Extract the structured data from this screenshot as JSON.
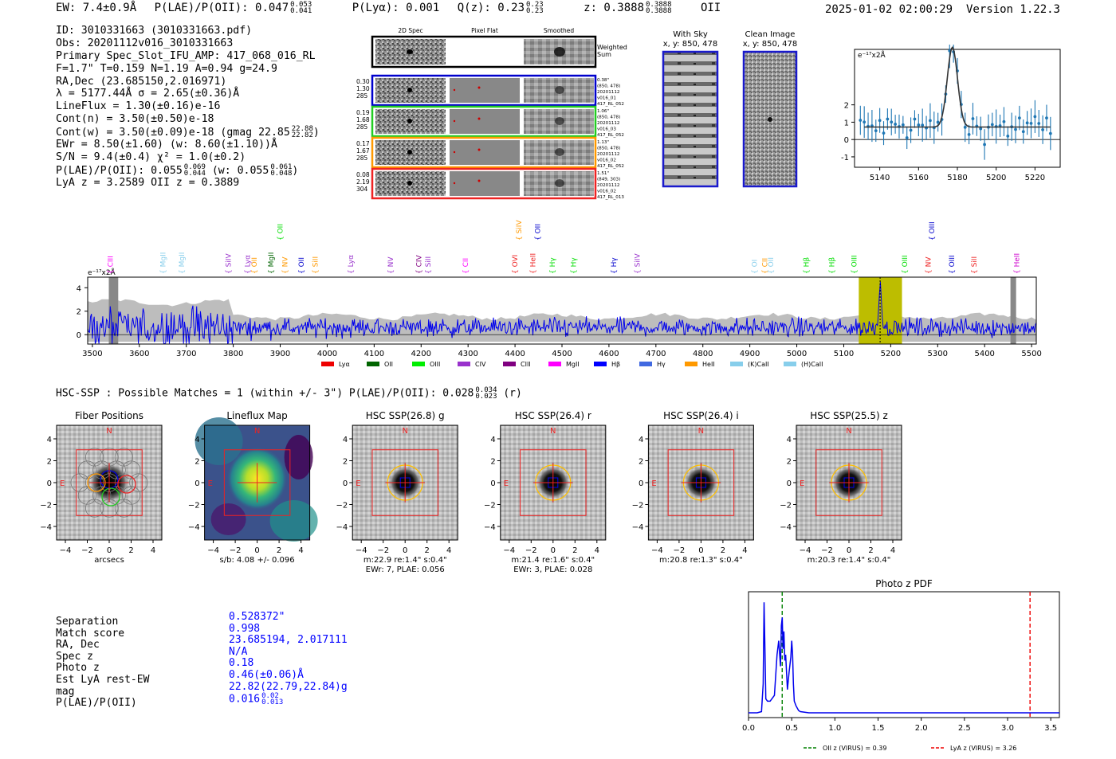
{
  "header": {
    "ew": "EW: 7.4±0.9Å",
    "plae_label": "P(LAE)/P(OII): 0.047",
    "plae_hi": "0.053",
    "plae_lo": "0.041",
    "plya": "P(Lyα): 0.001",
    "qz_label": "Q(z): 0.23",
    "qz_hi": "0.23",
    "qz_lo": "0.23",
    "z_label": "z: 0.3888",
    "z_hi": "0.3888",
    "z_lo": "0.3888",
    "z_line": "OII",
    "timestamp": "2025-01-02 02:00:29",
    "version": "Version 1.22.3"
  },
  "info": {
    "id": "ID: 3010331663 (3010331663.pdf)",
    "obs": "Obs: 20201112v016_3010331663",
    "primary": "Primary Spec_Slot_IFU_AMP: 417_068_016_RL",
    "fparams": "F=1.7\"  T=0.159  N=1.19  A=0.94  g=24.9",
    "radec": "RA,Dec (23.685150,2.016971)",
    "lambda": "λ = 5177.44Å  σ = 2.65(±0.36)Å",
    "lineflux": "LineFlux = 1.30(±0.16)e-16",
    "contn": "Cont(n) = 3.50(±0.50)e-18",
    "contw": "Cont(w) = 3.50(±0.09)e-18 (gmag 22.85",
    "contw_hi": "22.88",
    "contw_lo": "22.82",
    "ewr": "EWr = 8.50(±1.60) (w: 8.60(±1.10))Å",
    "sn": "S/N = 9.4(±0.4)  χ² = 1.0(±0.2)",
    "plae": "P(LAE)/P(OII): 0.055",
    "plae_hi": "0.069",
    "plae_lo": "0.044",
    "plae_w": "(w: 0.055",
    "plae_w_hi": "0.061",
    "plae_w_lo": "0.048",
    "lyaz": "LyA z = 3.2589  OII z = 0.3889"
  },
  "cutouts": {
    "col_2d": "2D Spec",
    "col_flat": "Pixel Flat",
    "col_smooth": "Smoothed",
    "weighted": [
      "Weighted",
      "Sum"
    ],
    "rows": [
      {
        "left": [
          "0.30",
          "1.30",
          "285"
        ],
        "right": [
          "0.38\"",
          "(850, 478)",
          "20201112",
          "v016_01",
          "417_RL_052"
        ],
        "color": "#0000cc"
      },
      {
        "left": [
          "0.19",
          "1.68",
          "285"
        ],
        "right": [
          "1.06\"",
          "(850, 478)",
          "20201112",
          "v016_03",
          "417_RL_052"
        ],
        "color": "#22cc22"
      },
      {
        "left": [
          "0.17",
          "1.67",
          "285"
        ],
        "right": [
          "1.13\"",
          "(850, 478)",
          "20201112",
          "v016_02",
          "417_RL_052"
        ],
        "color": "#ff9900"
      },
      {
        "left": [
          "0.08",
          "2.19",
          "304"
        ],
        "right": [
          "1.51\"",
          "(849, 303)",
          "20201112",
          "v016_02",
          "417_RL_013"
        ],
        "color": "#ee2222"
      }
    ],
    "with_sky": [
      "With Sky",
      "x, y: 850, 478"
    ],
    "clean": [
      "Clean Image",
      "x, y: 850, 478"
    ]
  },
  "zoom_chart": {
    "type": "scatter",
    "ylabel": "e⁻¹⁷x2Å",
    "xticks": [
      "5140",
      "5160",
      "5180",
      "5200",
      "5220"
    ],
    "yticks": [
      "2",
      "1",
      "0",
      "-1"
    ],
    "xlim": [
      5127,
      5233
    ],
    "ylim": [
      -1.6,
      5.2
    ],
    "gauss": {
      "center": 5177.44,
      "sigma": 2.65,
      "amp": 4.6,
      "base": 0.72
    }
  },
  "spectrum": {
    "ylabel": "e⁻¹⁷x2Å",
    "xticks": [
      "3500",
      "3600",
      "3700",
      "3800",
      "3900",
      "4000",
      "4100",
      "4200",
      "4300",
      "4400",
      "4500",
      "4600",
      "4700",
      "4800",
      "4900",
      "5000",
      "5100",
      "5200",
      "5300",
      "5400",
      "5500"
    ],
    "yticks": [
      "4",
      "2",
      "0"
    ],
    "xlim": [
      3490,
      5510
    ],
    "ylim": [
      -0.8,
      4.9
    ],
    "line_labels": [
      {
        "name": "CIII",
        "w": 3538,
        "color": "#ff00ff"
      },
      {
        "name": "MgII",
        "w": 3650,
        "color": "#87ceeb"
      },
      {
        "name": "MgII",
        "w": 3690,
        "color": "#87ceeb"
      },
      {
        "name": "SiIV",
        "w": 3790,
        "color": "#9932cc"
      },
      {
        "name": "Lyα",
        "w": 3830,
        "color": "#9932cc"
      },
      {
        "name": "OII",
        "w": 3845,
        "color": "#ff9900"
      },
      {
        "name": "MgII",
        "w": 3880,
        "color": "#006400"
      },
      {
        "name": "NV",
        "w": 3910,
        "color": "#ff9900"
      },
      {
        "name": "OII",
        "w": 3945,
        "color": "#0000cc"
      },
      {
        "name": "SiII",
        "w": 3975,
        "color": "#ff9900"
      },
      {
        "name": "Lyα",
        "w": 4050,
        "color": "#9932cc"
      },
      {
        "name": "NV",
        "w": 4135,
        "color": "#9932cc"
      },
      {
        "name": "CIV",
        "w": 4195,
        "color": "#800080"
      },
      {
        "name": "SiII",
        "w": 4215,
        "color": "#9932cc"
      },
      {
        "name": "CII",
        "w": 4295,
        "color": "#ff00ff"
      },
      {
        "name": "OVI",
        "w": 4400,
        "color": "#ee2222"
      },
      {
        "name": "HeII",
        "w": 4438,
        "color": "#ee2222"
      },
      {
        "name": "Hγ",
        "w": 4480,
        "color": "#00dd00"
      },
      {
        "name": "Hγ",
        "w": 4525,
        "color": "#00dd00"
      },
      {
        "name": "Hγ",
        "w": 4610,
        "color": "#0000cc"
      },
      {
        "name": "SiIV",
        "w": 4660,
        "color": "#9932cc"
      },
      {
        "name": "OI",
        "w": 4910,
        "color": "#87ceeb"
      },
      {
        "name": "CII",
        "w": 4932,
        "color": "#ff9900"
      },
      {
        "name": "OII",
        "w": 4945,
        "color": "#87ceeb"
      },
      {
        "name": "Hβ",
        "w": 5020,
        "color": "#00dd00"
      },
      {
        "name": "Hβ",
        "w": 5075,
        "color": "#00dd00"
      },
      {
        "name": "OIII",
        "w": 5122,
        "color": "#00dd00"
      },
      {
        "name": "OIII",
        "w": 5230,
        "color": "#00dd00"
      },
      {
        "name": "NV",
        "w": 5280,
        "color": "#ee2222"
      },
      {
        "name": "OIII",
        "w": 5330,
        "color": "#0000cc"
      },
      {
        "name": "SiII",
        "w": 5378,
        "color": "#ee2222"
      },
      {
        "name": "HeII",
        "w": 5468,
        "color": "#cc00cc"
      }
    ],
    "upper_labels": [
      {
        "name": "OII",
        "w": 3900,
        "color": "#00dd00"
      },
      {
        "name": "SiIV",
        "w": 4408,
        "color": "#ff9900"
      },
      {
        "name": "OII",
        "w": 4448,
        "color": "#0000cc"
      },
      {
        "name": "OIII",
        "w": 5288,
        "color": "#0000cc"
      }
    ],
    "legend": [
      {
        "label": "Lyα",
        "color": "#ee0000"
      },
      {
        "label": "OII",
        "color": "#006400"
      },
      {
        "label": "OIII",
        "color": "#00ee00"
      },
      {
        "label": "CIV",
        "color": "#9932cc"
      },
      {
        "label": "CIII",
        "color": "#800080"
      },
      {
        "label": "MgII",
        "color": "#ff00ff"
      },
      {
        "label": "Hβ",
        "color": "#0000ff"
      },
      {
        "label": "Hγ",
        "color": "#4169e1"
      },
      {
        "label": "HeII",
        "color": "#ff9900"
      },
      {
        "label": "(K)CaII",
        "color": "#87ceeb"
      },
      {
        "label": "(H)CaII",
        "color": "#87ceeb"
      }
    ],
    "highlight": [
      5132,
      5224
    ],
    "line_center": 5177.44
  },
  "hsc": {
    "line": "HSC-SSP : Possible Matches = 1 (within +/- 3\")  P(LAE)/P(OII): 0.028",
    "hi": "0.034",
    "lo": "0.023",
    "band": "(r)"
  },
  "panels": [
    {
      "title": "Fiber Positions",
      "captions": [
        "arcsecs"
      ],
      "kind": "fiber"
    },
    {
      "title": "Lineflux Map",
      "captions": [
        "s/b: 4.08 +/- 0.096"
      ],
      "kind": "lineflux"
    },
    {
      "title": "HSC SSP(26.8) g",
      "captions": [
        "m:22.9  re:1.4\"  s:0.4\"",
        "EWr: 7, PLAE: 0.056"
      ],
      "kind": "hsc"
    },
    {
      "title": "HSC SSP(26.4) r",
      "captions": [
        "m:21.4  re:1.6\"  s:0.4\"",
        "EWr: 3, PLAE: 0.028"
      ],
      "kind": "hsc"
    },
    {
      "title": "HSC SSP(26.4) i",
      "captions": [
        "m:20.8  re:1.3\"  s:0.4\""
      ],
      "kind": "hsc"
    },
    {
      "title": "HSC SSP(25.5) z",
      "captions": [
        "m:20.3  re:1.4\"  s:0.4\""
      ],
      "kind": "hsc"
    }
  ],
  "panel_ticks": {
    "x": [
      "−4",
      "−2",
      "0",
      "2",
      "4"
    ],
    "y": [
      "4",
      "2",
      "0",
      "−2",
      "−4"
    ],
    "n": "N",
    "e": "E"
  },
  "match": {
    "labels": [
      "Separation",
      "Match score",
      "RA, Dec",
      "Spec z",
      "Photo z",
      "Est LyA rest-EW",
      "mag",
      "P(LAE)/P(OII)"
    ],
    "values": [
      "0.528372\"",
      "0.998",
      "23.685194, 2.017111",
      "N/A",
      "0.18",
      "0.46(±0.06)Å",
      "22.82(22.79,22.84)g",
      "0.016"
    ],
    "plae_hi": "0.02",
    "plae_lo": "0.013"
  },
  "chart_data": [
    {
      "type": "line",
      "title": "Photo z PDF",
      "xlabel": "",
      "ylabel": "",
      "xlim": [
        0.0,
        3.6
      ],
      "xticks": [
        "0.0",
        "0.5",
        "1.0",
        "1.5",
        "2.0",
        "2.5",
        "3.0",
        "3.5"
      ],
      "x": [
        0.0,
        0.1,
        0.15,
        0.17,
        0.18,
        0.19,
        0.2,
        0.22,
        0.25,
        0.3,
        0.33,
        0.35,
        0.37,
        0.38,
        0.39,
        0.4,
        0.41,
        0.42,
        0.43,
        0.44,
        0.45,
        0.47,
        0.49,
        0.5,
        0.51,
        0.52,
        0.53,
        0.55,
        0.58,
        0.6,
        0.7,
        1.0,
        2.0,
        3.6
      ],
      "series": [
        {
          "name": "PDF",
          "values": [
            0.0,
            0.0,
            0.01,
            0.25,
            0.95,
            0.55,
            0.12,
            0.1,
            0.1,
            0.15,
            0.5,
            0.62,
            0.4,
            0.75,
            0.82,
            0.55,
            0.7,
            0.45,
            0.5,
            0.35,
            0.2,
            0.35,
            0.48,
            0.62,
            0.5,
            0.25,
            0.1,
            0.06,
            0.02,
            0.01,
            0.0,
            0.0,
            0.0,
            0.0
          ]
        }
      ],
      "vlines": [
        {
          "x": 0.39,
          "label": "OII z (VIRUS) = 0.39",
          "color": "#008000"
        },
        {
          "x": 3.26,
          "label": "LyA z (VIRUS) = 3.26",
          "color": "#ee0000"
        }
      ]
    }
  ]
}
